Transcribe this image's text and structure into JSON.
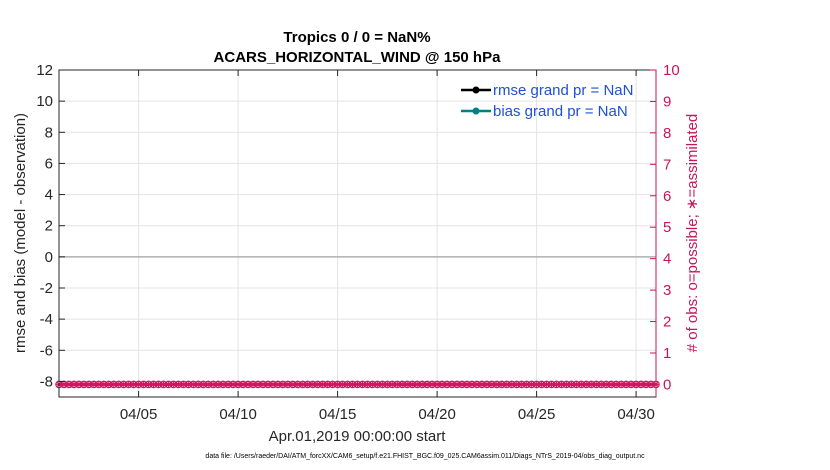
{
  "chart_data": {
    "type": "line",
    "title": "Tropics 0 / 0 = NaN%",
    "subtitle": "ACARS_HORIZONTAL_WIND @ 150 hPa",
    "xlabel": "Apr.01,2019 00:00:00 start",
    "ylabel_left": "rmse and bias (model - observation)",
    "ylabel_right": "# of obs: o=possible; ∗=assimilated",
    "xlim": [
      1,
      31
    ],
    "ylim_left": [
      -9,
      12
    ],
    "ylim_right": [
      -0.4,
      10
    ],
    "x_ticks": [
      {
        "value": 5,
        "label": "04/05"
      },
      {
        "value": 10,
        "label": "04/10"
      },
      {
        "value": 15,
        "label": "04/15"
      },
      {
        "value": 20,
        "label": "04/20"
      },
      {
        "value": 25,
        "label": "04/25"
      },
      {
        "value": 30,
        "label": "04/30"
      }
    ],
    "y_ticks_left": [
      {
        "value": 12,
        "label": "12"
      },
      {
        "value": 10,
        "label": "10"
      },
      {
        "value": 8,
        "label": "8"
      },
      {
        "value": 6,
        "label": "6"
      },
      {
        "value": 4,
        "label": "4"
      },
      {
        "value": 2,
        "label": "2"
      },
      {
        "value": 0,
        "label": "0"
      },
      {
        "value": -2,
        "label": "-2"
      },
      {
        "value": -4,
        "label": "-4"
      },
      {
        "value": -6,
        "label": "-6"
      },
      {
        "value": -8,
        "label": "-8"
      }
    ],
    "y_ticks_right": [
      {
        "value": 10,
        "label": "10"
      },
      {
        "value": 9,
        "label": "9"
      },
      {
        "value": 8,
        "label": "8"
      },
      {
        "value": 7,
        "label": "7"
      },
      {
        "value": 6,
        "label": "6"
      },
      {
        "value": 5,
        "label": "5"
      },
      {
        "value": 4,
        "label": "4"
      },
      {
        "value": 3,
        "label": "3"
      },
      {
        "value": 2,
        "label": "2"
      },
      {
        "value": 1,
        "label": "1"
      },
      {
        "value": 0,
        "label": "0"
      }
    ],
    "series": [
      {
        "name": "rmse grand pr = NaN",
        "color": "#000000",
        "marker": "circle",
        "values": []
      },
      {
        "name": "bias grand pr = NaN",
        "color": "#008080",
        "marker": "circle",
        "values": []
      }
    ],
    "zero_line": {
      "value": 0,
      "color": "#b0b0b0"
    },
    "obs_count": {
      "value": 0,
      "color": "#d6135f",
      "x_start": 1,
      "x_end": 31,
      "step": 0.25
    },
    "grid": true,
    "legend_position": "top-right",
    "colors": {
      "right_axis": "#c8155a",
      "legend_text": "#1f4fd6",
      "grid": "#e3e3e3"
    }
  },
  "footer": {
    "data_file": "data file: /Users/raeder/DAI/ATM_forcXX/CAM6_setup/f.e21.FHIST_BGC.f09_025.CAM6assim.011/Diags_NTrS_2019-04/obs_diag_output.nc"
  }
}
